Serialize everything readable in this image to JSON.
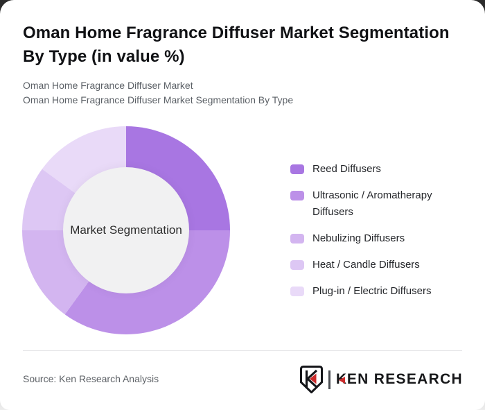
{
  "header": {
    "title_line1": "Oman Home Fragrance Diffuser Market Segmentation",
    "title_line2": "By Type (in value %)",
    "subtitle_line1": "Oman Home Fragrance Diffuser Market",
    "subtitle_line2": "Oman Home Fragrance Diffuser Market Segmentation By Type"
  },
  "chart_data": {
    "type": "pie",
    "donut": true,
    "title": "Oman Home Fragrance Diffuser Market Segmentation By Type (in value %)",
    "center_label": "Market Segmentation",
    "start_angle_deg": 0,
    "direction": "clockwise",
    "legend_position": "right",
    "values_labeled_on_chart": false,
    "segments": [
      {
        "label": "Reed Diffusers",
        "value": 25,
        "color": "#a876e2"
      },
      {
        "label": "Ultrasonic / Aromatherapy Diffusers",
        "value": 35,
        "color": "#bc90e8"
      },
      {
        "label": "Nebulizing Diffusers",
        "value": 15,
        "color": "#d3b5f0"
      },
      {
        "label": "Heat / Candle Diffusers",
        "value": 10,
        "color": "#ddc7f4"
      },
      {
        "label": "Plug-in / Electric Diffusers",
        "value": 15,
        "color": "#e9daf8"
      }
    ],
    "center_hole_color": "#f1f1f2"
  },
  "footer": {
    "source": "Source: Ken Research Analysis",
    "logo_k": "K",
    "logo_rest": "EN RESEARCH"
  }
}
